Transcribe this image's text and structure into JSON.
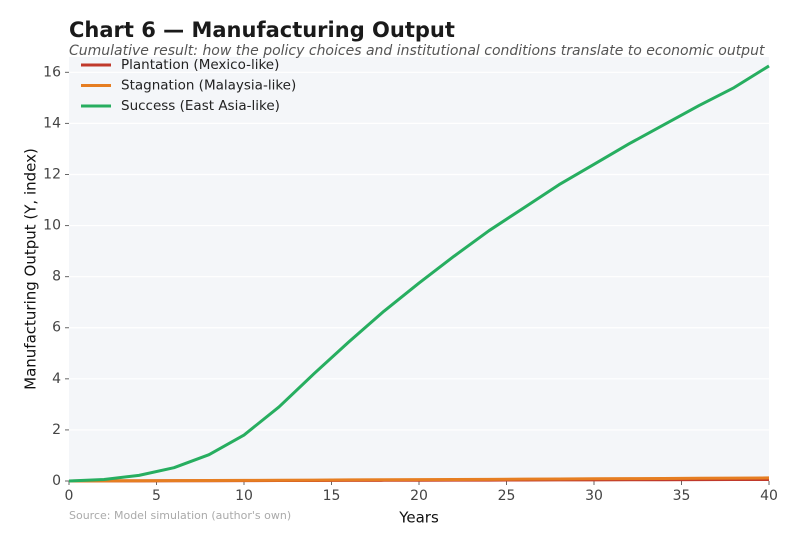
{
  "chart_data": {
    "type": "line",
    "title": "Chart 6 — Manufacturing Output",
    "subtitle": "Cumulative result: how the policy choices and institutional conditions translate to economic output",
    "x_label": "Years",
    "y_label": "Manufacturing Output (Y, index)",
    "source": "Source: Model simulation (author's own)",
    "x": [
      0,
      2,
      4,
      6,
      8,
      10,
      12,
      14,
      16,
      18,
      20,
      22,
      24,
      26,
      28,
      30,
      32,
      34,
      36,
      38,
      40
    ],
    "series": [
      {
        "name": "Plantation (Mexico-like)",
        "color": "#c0392b",
        "values": [
          0,
          0.003,
          0.006,
          0.009,
          0.012,
          0.015,
          0.018,
          0.021,
          0.024,
          0.027,
          0.03,
          0.033,
          0.036,
          0.039,
          0.042,
          0.045,
          0.048,
          0.051,
          0.054,
          0.057,
          0.06
        ]
      },
      {
        "name": "Stagnation (Malaysia-like)",
        "color": "#e67e22",
        "values": [
          0,
          0.005,
          0.01,
          0.015,
          0.02,
          0.025,
          0.03,
          0.036,
          0.042,
          0.048,
          0.054,
          0.06,
          0.066,
          0.072,
          0.079,
          0.086,
          0.093,
          0.1,
          0.107,
          0.113,
          0.12
        ]
      },
      {
        "name": "Success (East Asia-like)",
        "color": "#27ae60",
        "values": [
          0,
          0.06,
          0.22,
          0.52,
          1.03,
          1.8,
          2.9,
          4.2,
          5.45,
          6.65,
          7.75,
          8.8,
          9.8,
          10.7,
          11.6,
          12.4,
          13.2,
          13.95,
          14.7,
          15.4,
          16.25
        ]
      }
    ],
    "xlim": [
      0,
      40
    ],
    "xticks": [
      0,
      5,
      10,
      15,
      20,
      25,
      30,
      35,
      40
    ],
    "ylim": [
      0,
      16.6
    ],
    "yticks": [
      0,
      2,
      4,
      6,
      8,
      10,
      12,
      14,
      16
    ],
    "grid": true,
    "legend": "upper-left"
  }
}
